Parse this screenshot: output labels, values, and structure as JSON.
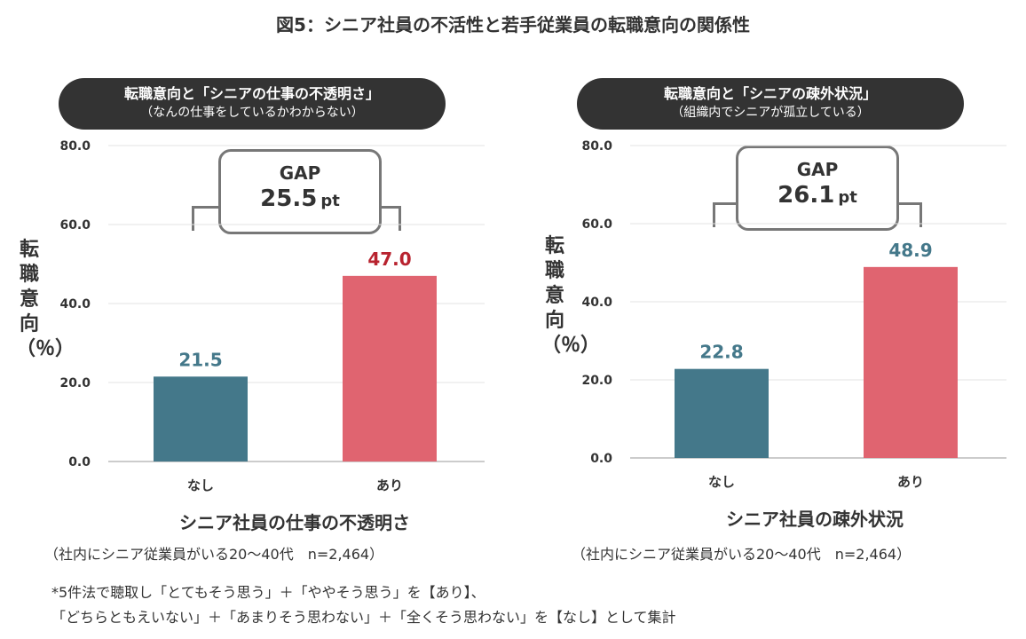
{
  "title": "図5：シニア社員の不活性と若手従業員の転職意向の関係性",
  "charts": [
    {
      "header_main": "転職意向と「シニアの仕事の不透明さ」",
      "header_sub": "（なんの仕事をしているかわからない）",
      "gap_label": "GAP",
      "gap_value": "25.5",
      "gap_unit": "pt",
      "ylabel": "転職意向（％）",
      "xtitle": "シニア社員の仕事の不透明さ",
      "note": "（社内にシニア従業員がいる20〜40代　n=2,464）"
    },
    {
      "header_main": "転職意向と「シニアの疎外状況」",
      "header_sub": "（組織内でシニアが孤立している）",
      "gap_label": "GAP",
      "gap_value": "26.1",
      "gap_unit": "pt",
      "ylabel": "転職意向（％）",
      "xtitle": "シニア社員の疎外状況",
      "note": "（社内にシニア従業員がいる20〜40代　n=2,464）"
    }
  ],
  "footnote_line1": "*5件法で聴取し「とてもそう思う」＋「ややそう思う」を【あり】、",
  "footnote_line2": "「どちらともえいない」＋「あまりそう思わない」＋「全くそう思わない」を【なし】として集計",
  "chart_data": [
    {
      "type": "bar",
      "categories": [
        "なし",
        "あり"
      ],
      "values": [
        21.5,
        47.0
      ],
      "value_labels": [
        "21.5",
        "47.0"
      ],
      "bar_colors": [
        "#44788a",
        "#e06470"
      ],
      "value_label_colors": [
        "#44788a",
        "#b8232f"
      ],
      "ylim": [
        0,
        80
      ],
      "yticks": [
        "0.0",
        "20.0",
        "40.0",
        "60.0",
        "80.0"
      ],
      "grid": true
    },
    {
      "type": "bar",
      "categories": [
        "なし",
        "あり"
      ],
      "values": [
        22.8,
        48.9
      ],
      "value_labels": [
        "22.8",
        "48.9"
      ],
      "bar_colors": [
        "#44788a",
        "#e06470"
      ],
      "value_label_colors": [
        "#44788a",
        "#44788a"
      ],
      "ylim": [
        0,
        80
      ],
      "yticks": [
        "0.0",
        "20.0",
        "40.0",
        "60.0",
        "80.0"
      ],
      "grid": true
    }
  ]
}
